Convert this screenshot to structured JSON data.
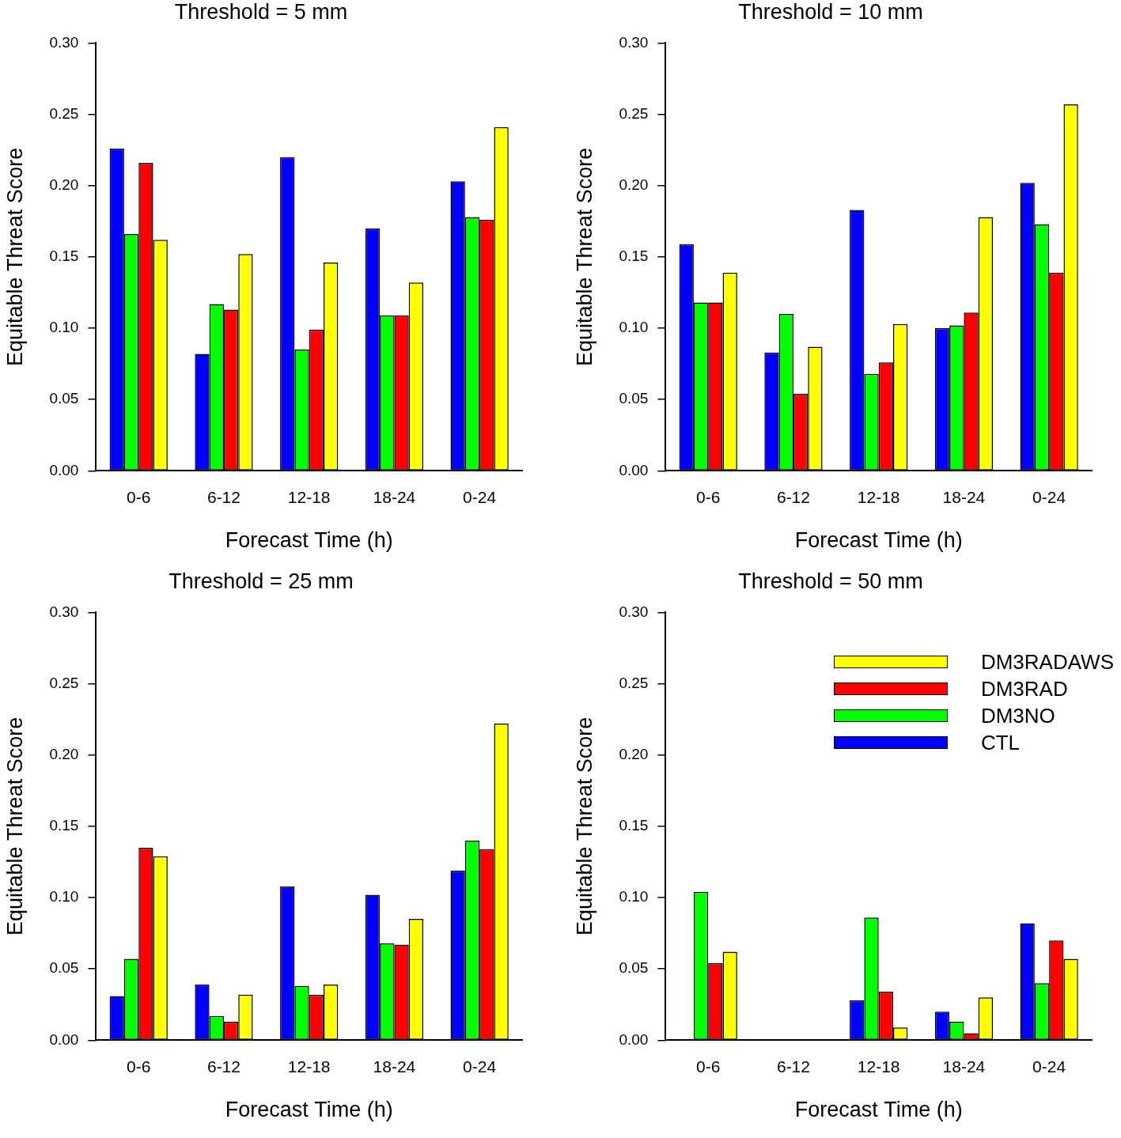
{
  "chart_data": [
    {
      "type": "bar",
      "title": "Threshold = 5 mm",
      "x_label": "Forecast Time (h)",
      "y_label": "Equitable Threat Score",
      "categories": [
        "0-6",
        "6-12",
        "12-18",
        "18-24",
        "0-24"
      ],
      "series": [
        {
          "name": "CTL",
          "color": "#0000ff",
          "values": [
            0.226,
            0.082,
            0.22,
            0.17,
            0.203
          ]
        },
        {
          "name": "DM3NO",
          "color": "#00ff00",
          "values": [
            0.166,
            0.117,
            0.085,
            0.109,
            0.178
          ]
        },
        {
          "name": "DM3RAD",
          "color": "#ff0000",
          "values": [
            0.216,
            0.113,
            0.099,
            0.109,
            0.176
          ]
        },
        {
          "name": "DM3RADAWS",
          "color": "#ffff00",
          "values": [
            0.162,
            0.152,
            0.146,
            0.132,
            0.241
          ]
        }
      ],
      "ylim": [
        0,
        0.3
      ],
      "yticks": [
        {
          "value": 0,
          "label": "0.00"
        },
        {
          "value": 0.05,
          "label": "0.05"
        },
        {
          "value": 0.1,
          "label": "0.10"
        },
        {
          "value": 0.15,
          "label": "0.15"
        },
        {
          "value": 0.2,
          "label": "0.20"
        },
        {
          "value": 0.25,
          "label": "0.25"
        },
        {
          "value": 0.3,
          "label": "0.30"
        }
      ],
      "grid": false
    },
    {
      "type": "bar",
      "title": "Threshold = 10 mm",
      "x_label": "Forecast Time (h)",
      "y_label": "Equitable Threat Score",
      "categories": [
        "0-6",
        "6-12",
        "12-18",
        "18-24",
        "0-24"
      ],
      "series": [
        {
          "name": "CTL",
          "color": "#0000ff",
          "values": [
            0.159,
            0.083,
            0.183,
            0.1,
            0.202
          ]
        },
        {
          "name": "DM3NO",
          "color": "#00ff00",
          "values": [
            0.118,
            0.11,
            0.068,
            0.102,
            0.173
          ]
        },
        {
          "name": "DM3RAD",
          "color": "#ff0000",
          "values": [
            0.118,
            0.054,
            0.076,
            0.111,
            0.139
          ]
        },
        {
          "name": "DM3RADAWS",
          "color": "#ffff00",
          "values": [
            0.139,
            0.087,
            0.103,
            0.178,
            0.257
          ]
        }
      ],
      "ylim": [
        0,
        0.3
      ],
      "yticks": [
        {
          "value": 0,
          "label": "0.00"
        },
        {
          "value": 0.05,
          "label": "0.05"
        },
        {
          "value": 0.1,
          "label": "0.10"
        },
        {
          "value": 0.15,
          "label": "0.15"
        },
        {
          "value": 0.2,
          "label": "0.20"
        },
        {
          "value": 0.25,
          "label": "0.25"
        },
        {
          "value": 0.3,
          "label": "0.30"
        }
      ],
      "grid": false
    },
    {
      "type": "bar",
      "title": "Threshold = 25 mm",
      "x_label": "Forecast Time (h)",
      "y_label": "Equitable Threat Score",
      "categories": [
        "0-6",
        "6-12",
        "12-18",
        "18-24",
        "0-24"
      ],
      "series": [
        {
          "name": "CTL",
          "color": "#0000ff",
          "values": [
            0.031,
            0.039,
            0.108,
            0.102,
            0.119
          ]
        },
        {
          "name": "DM3NO",
          "color": "#00ff00",
          "values": [
            0.057,
            0.017,
            0.038,
            0.068,
            0.14
          ]
        },
        {
          "name": "DM3RAD",
          "color": "#ff0000",
          "values": [
            0.135,
            0.013,
            0.032,
            0.067,
            0.134
          ]
        },
        {
          "name": "DM3RADAWS",
          "color": "#ffff00",
          "values": [
            0.129,
            0.032,
            0.039,
            0.085,
            0.222
          ]
        }
      ],
      "ylim": [
        0,
        0.3
      ],
      "yticks": [
        {
          "value": 0,
          "label": "0.00"
        },
        {
          "value": 0.05,
          "label": "0.05"
        },
        {
          "value": 0.1,
          "label": "0.10"
        },
        {
          "value": 0.15,
          "label": "0.15"
        },
        {
          "value": 0.2,
          "label": "0.20"
        },
        {
          "value": 0.25,
          "label": "0.25"
        },
        {
          "value": 0.3,
          "label": "0.30"
        }
      ],
      "grid": false
    },
    {
      "type": "bar",
      "title": "Threshold = 50 mm",
      "x_label": "Forecast Time (h)",
      "y_label": "Equitable Threat Score",
      "categories": [
        "0-6",
        "6-12",
        "12-18",
        "18-24",
        "0-24"
      ],
      "series": [
        {
          "name": "CTL",
          "color": "#0000ff",
          "values": [
            0,
            0,
            0.028,
            0.02,
            0.082
          ]
        },
        {
          "name": "DM3NO",
          "color": "#00ff00",
          "values": [
            0.104,
            0,
            0.086,
            0.013,
            0.04
          ]
        },
        {
          "name": "DM3RAD",
          "color": "#ff0000",
          "values": [
            0.054,
            0,
            0.034,
            0.005,
            0.07
          ]
        },
        {
          "name": "DM3RADAWS",
          "color": "#ffff00",
          "values": [
            0.062,
            0,
            0.009,
            0.03,
            0.057
          ]
        }
      ],
      "ylim": [
        0,
        0.3
      ],
      "yticks": [
        {
          "value": 0,
          "label": "0.00"
        },
        {
          "value": 0.05,
          "label": "0.05"
        },
        {
          "value": 0.1,
          "label": "0.10"
        },
        {
          "value": 0.15,
          "label": "0.15"
        },
        {
          "value": 0.2,
          "label": "0.20"
        },
        {
          "value": 0.25,
          "label": "0.25"
        },
        {
          "value": 0.3,
          "label": "0.30"
        }
      ],
      "grid": false,
      "legend": "top-right"
    }
  ]
}
